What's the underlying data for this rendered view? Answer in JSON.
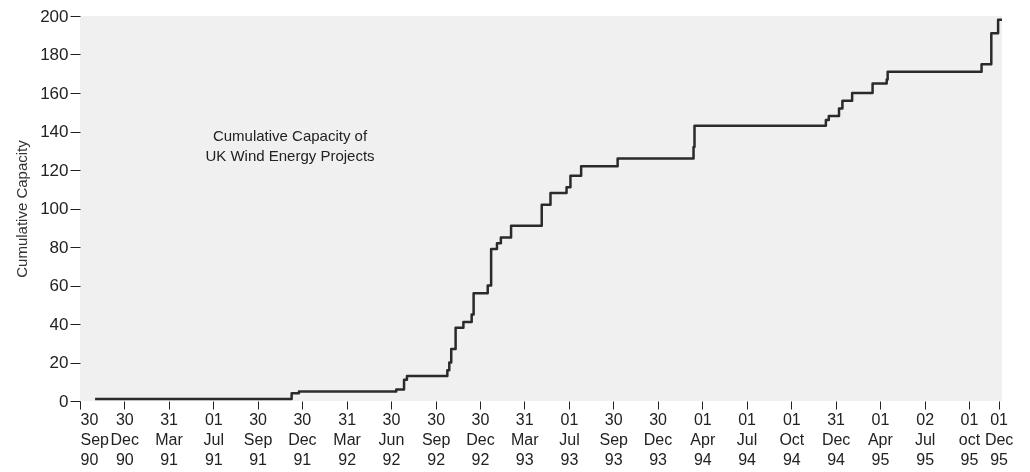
{
  "chart_data": {
    "type": "step",
    "title": "Cumulative Capacity of UK Wind Energy Projects",
    "ylabel": "Cumulative Capacity",
    "x": [
      "1990-10-31",
      "1991-12-09",
      "1991-12-24",
      "1992-07-11",
      "1992-07-27",
      "1992-08-02",
      "1992-10-24",
      "1992-10-28",
      "1992-11-01",
      "1992-11-10",
      "1992-11-26",
      "1992-12-13",
      "1992-12-17",
      "1993-01-15",
      "1993-01-22",
      "1993-02-03",
      "1993-02-11",
      "1993-03-04",
      "1993-05-06",
      "1993-05-24",
      "1993-06-26",
      "1993-07-04",
      "1993-07-26",
      "1993-10-09",
      "1994-03-14",
      "1994-03-16",
      "1994-12-11",
      "1994-12-17",
      "1995-01-07",
      "1995-01-14",
      "1995-02-03",
      "1995-03-17",
      "1995-04-15",
      "1995-04-17",
      "1995-10-27",
      "1995-11-16",
      "1995-11-30",
      "1995-12-08"
    ],
    "series": [
      {
        "color": "#2a2a2a",
        "values": [
          1,
          4,
          5,
          6,
          11,
          13,
          16,
          20,
          27,
          38,
          41,
          45,
          56,
          60,
          79,
          82,
          85,
          91,
          102,
          108,
          111,
          117,
          122,
          126,
          132,
          143,
          146,
          148,
          152,
          156,
          160,
          165,
          167,
          171,
          175,
          191,
          198,
          198
        ]
      }
    ],
    "xlim": [
      "1990-09-30",
      "1995-12-08"
    ],
    "xticks": [
      {
        "value": "1990-09-30",
        "label": "30 Sep 90"
      },
      {
        "value": "1990-12-30",
        "label": "30 Dec 90"
      },
      {
        "value": "1991-03-31",
        "label": "31 Mar 91"
      },
      {
        "value": "1991-07-01",
        "label": "01 Jul 91"
      },
      {
        "value": "1991-09-30",
        "label": "30 Sep 91"
      },
      {
        "value": "1991-12-30",
        "label": "30 Dec 91"
      },
      {
        "value": "1992-03-31",
        "label": "31 Mar 92"
      },
      {
        "value": "1992-06-30",
        "label": "30 Jun 92"
      },
      {
        "value": "1992-09-30",
        "label": "30 Sep 92"
      },
      {
        "value": "1992-12-30",
        "label": "30 Dec 92"
      },
      {
        "value": "1993-03-31",
        "label": "31 Mar 93"
      },
      {
        "value": "1993-07-01",
        "label": "01 Jul 93"
      },
      {
        "value": "1993-09-30",
        "label": "30 Sep 93"
      },
      {
        "value": "1993-12-30",
        "label": "30 Dec 93"
      },
      {
        "value": "1994-04-01",
        "label": "01 Apr 94"
      },
      {
        "value": "1994-07-01",
        "label": "01 Jul 94"
      },
      {
        "value": "1994-10-01",
        "label": "01 Oct 94"
      },
      {
        "value": "1994-12-31",
        "label": "31 Dec 94"
      },
      {
        "value": "1995-04-01",
        "label": "01 Apr 95"
      },
      {
        "value": "1995-07-02",
        "label": "02 Jul 95"
      },
      {
        "value": "1995-10-01",
        "label": "01 oct 95"
      },
      {
        "value": "1995-12-01",
        "label": "01 Dec 95"
      }
    ],
    "ylim": [
      0,
      200
    ],
    "yticks": [
      0,
      20,
      40,
      60,
      80,
      100,
      120,
      140,
      160,
      180,
      200
    ],
    "grid": false
  }
}
